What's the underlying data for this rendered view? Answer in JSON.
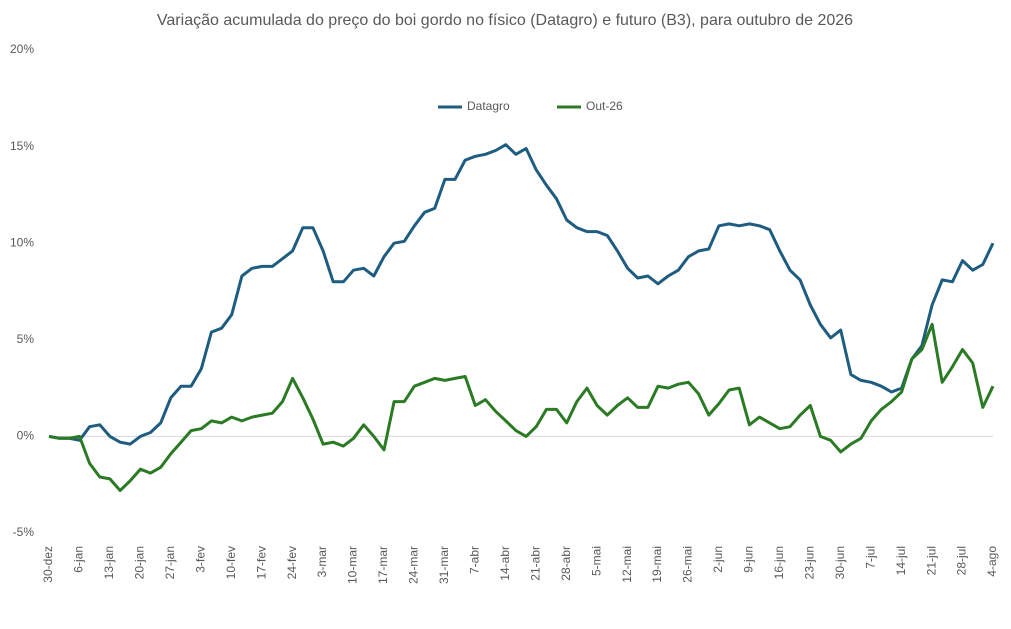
{
  "chart_data": {
    "type": "line",
    "title": "Variação acumulada do preço do boi gordo no físico (Datagro) e futuro (B3), para outubro de 2026",
    "categories": [
      "30-dez",
      null,
      null,
      "6-jan",
      null,
      null,
      "13-jan",
      null,
      null,
      "20-jan",
      null,
      null,
      "27-jan",
      null,
      null,
      "3-fev",
      null,
      null,
      "10-fev",
      null,
      null,
      "17-fev",
      null,
      null,
      "24-fev",
      null,
      null,
      "3-mar",
      null,
      null,
      "10-mar",
      null,
      null,
      "17-mar",
      null,
      null,
      "24-mar",
      null,
      null,
      "31-mar",
      null,
      null,
      "7-abr",
      null,
      null,
      "14-abr",
      null,
      null,
      "21-abr",
      null,
      null,
      "28-abr",
      null,
      null,
      "5-mai",
      null,
      null,
      "12-mai",
      null,
      null,
      "19-mai",
      null,
      null,
      "26-mai",
      null,
      null,
      "2-jun",
      null,
      null,
      "9-jun",
      null,
      null,
      "16-jun",
      null,
      null,
      "23-jun",
      null,
      null,
      "30-jun",
      null,
      null,
      "7-jul",
      null,
      null,
      "14-jul",
      null,
      null,
      "21-jul",
      null,
      null,
      "28-jul",
      null,
      null,
      "4-ago"
    ],
    "series": [
      {
        "name": "Datagro",
        "color": "#1e5c80",
        "values": [
          0,
          -0.1,
          -0.1,
          -0.2,
          0.5,
          0.6,
          0.0,
          -0.3,
          -0.4,
          0.0,
          0.2,
          0.7,
          2.0,
          2.6,
          2.6,
          3.5,
          5.4,
          5.6,
          6.3,
          8.3,
          8.7,
          8.8,
          8.8,
          9.2,
          9.6,
          10.8,
          10.8,
          9.6,
          8.0,
          8.0,
          8.6,
          8.7,
          8.3,
          9.3,
          10.0,
          10.1,
          10.9,
          11.6,
          11.8,
          13.3,
          13.3,
          14.3,
          14.5,
          14.6,
          14.8,
          15.1,
          14.6,
          14.9,
          13.8,
          13.0,
          12.3,
          11.2,
          10.8,
          10.6,
          10.6,
          10.4,
          9.6,
          8.7,
          8.2,
          8.3,
          7.9,
          8.3,
          8.6,
          9.3,
          9.6,
          9.7,
          10.9,
          11.0,
          10.9,
          11.0,
          10.9,
          10.7,
          9.6,
          8.6,
          8.1,
          6.8,
          5.8,
          5.1,
          5.5,
          3.2,
          2.9,
          2.8,
          2.6,
          2.3,
          2.5,
          4.0,
          4.7,
          6.8,
          8.1,
          8.0,
          9.1,
          8.6,
          8.9,
          10.0
        ]
      },
      {
        "name": "Out-26",
        "color": "#2b7a24",
        "values": [
          0,
          -0.1,
          -0.1,
          0.0,
          -1.4,
          -2.1,
          -2.2,
          -2.8,
          -2.3,
          -1.7,
          -1.9,
          -1.6,
          -0.9,
          -0.3,
          0.3,
          0.4,
          0.8,
          0.7,
          1.0,
          0.8,
          1.0,
          1.1,
          1.2,
          1.8,
          3.0,
          2.0,
          0.9,
          -0.4,
          -0.3,
          -0.5,
          -0.1,
          0.6,
          0.0,
          -0.7,
          1.8,
          1.8,
          2.6,
          2.8,
          3.0,
          2.9,
          3.0,
          3.1,
          1.6,
          1.9,
          1.3,
          0.8,
          0.3,
          0.0,
          0.5,
          1.4,
          1.4,
          0.7,
          1.8,
          2.5,
          1.6,
          1.1,
          1.6,
          2.0,
          1.5,
          1.5,
          2.6,
          2.5,
          2.7,
          2.8,
          2.2,
          1.1,
          1.7,
          2.4,
          2.5,
          0.6,
          1.0,
          0.7,
          0.4,
          0.5,
          1.1,
          1.6,
          0.0,
          -0.2,
          -0.8,
          -0.4,
          -0.1,
          0.8,
          1.4,
          1.8,
          2.3,
          4.0,
          4.5,
          5.8,
          2.8,
          3.6,
          4.5,
          3.8,
          1.5,
          2.6
        ]
      }
    ],
    "ylim": [
      -5,
      20
    ],
    "yticks": [
      {
        "value": -5,
        "label": "-5%"
      },
      {
        "value": 0,
        "label": "0%"
      },
      {
        "value": 5,
        "label": "5%"
      },
      {
        "value": 10,
        "label": "10%"
      },
      {
        "value": 15,
        "label": "15%"
      },
      {
        "value": 20,
        "label": "20%"
      }
    ],
    "legend": "top"
  }
}
